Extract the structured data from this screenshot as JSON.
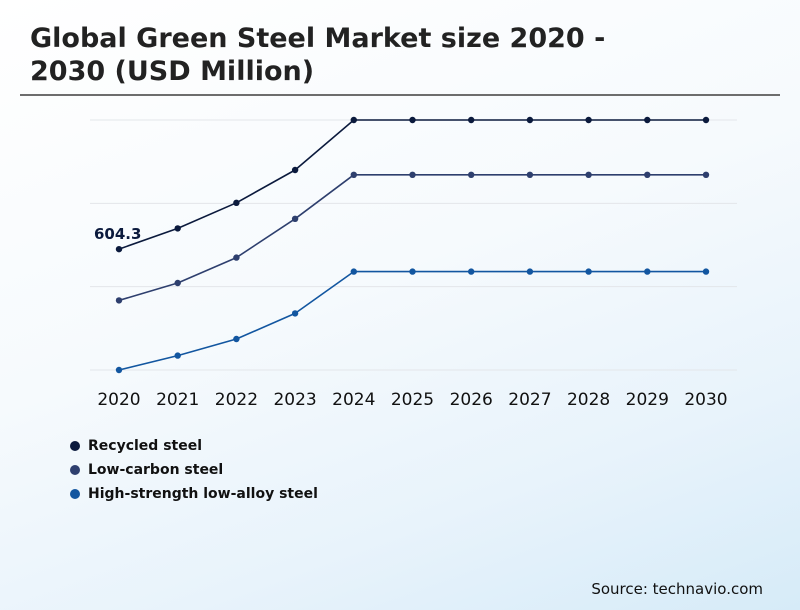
{
  "header": {
    "title": "Global Green Steel Market size 2020 - 2030 (USD Million)"
  },
  "chart_data": {
    "type": "line",
    "title": "Global Green Steel Market size 2020 - 2030 (USD Million)",
    "xlabel": "",
    "ylabel": "",
    "categories": [
      "2020",
      "2021",
      "2022",
      "2023",
      "2024",
      "2025",
      "2026",
      "2027",
      "2028",
      "2029",
      "2030"
    ],
    "series": [
      {
        "name": "Recycled steel",
        "color": "#0b1a3d",
        "values": [
          604.3,
          708,
          836,
          1000,
          1250,
          1250,
          1250,
          1250,
          1250,
          1250,
          1250
        ]
      },
      {
        "name": "Low-carbon steel",
        "color": "#2e3f6e",
        "values": [
          348,
          435,
          562,
          756,
          976,
          976,
          976,
          976,
          976,
          976,
          976
        ]
      },
      {
        "name": "High-strength low-alloy steel",
        "color": "#1256a0",
        "values": [
          0,
          72,
          155,
          283,
          492,
          492,
          492,
          492,
          492,
          492,
          492
        ]
      }
    ],
    "annotations": [
      {
        "series_index": 0,
        "point_index": 0,
        "text": "604.3"
      }
    ],
    "ylim": [
      0,
      1250
    ],
    "grid": "horizontal",
    "y_tick_labels_shown": false,
    "legend_placement": "bottom-left"
  },
  "footer": {
    "source": "Source: technavio.com"
  }
}
